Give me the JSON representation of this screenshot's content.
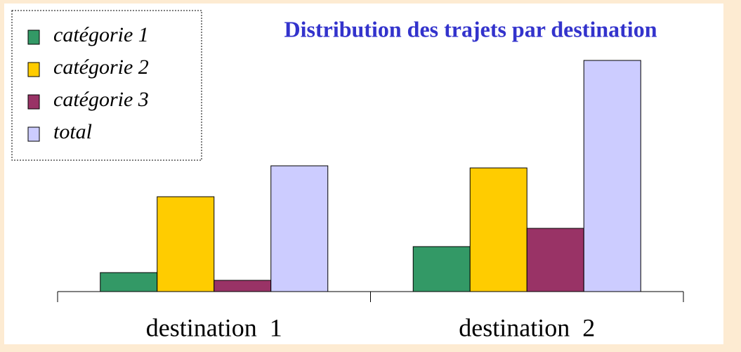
{
  "chart_data": {
    "type": "bar",
    "title": "Distribution des trajets par destination",
    "categories": [
      "destination  1",
      "destination  2"
    ],
    "series": [
      {
        "name": "catégorie 1",
        "color": "#339966",
        "values": [
          27,
          64
        ]
      },
      {
        "name": "catégorie 2",
        "color": "#ffcc00",
        "values": [
          135,
          176
        ]
      },
      {
        "name": "catégorie 3",
        "color": "#993366",
        "values": [
          16,
          90
        ]
      },
      {
        "name": "total",
        "color": "#ccccff",
        "values": [
          179,
          329
        ]
      }
    ]
  }
}
